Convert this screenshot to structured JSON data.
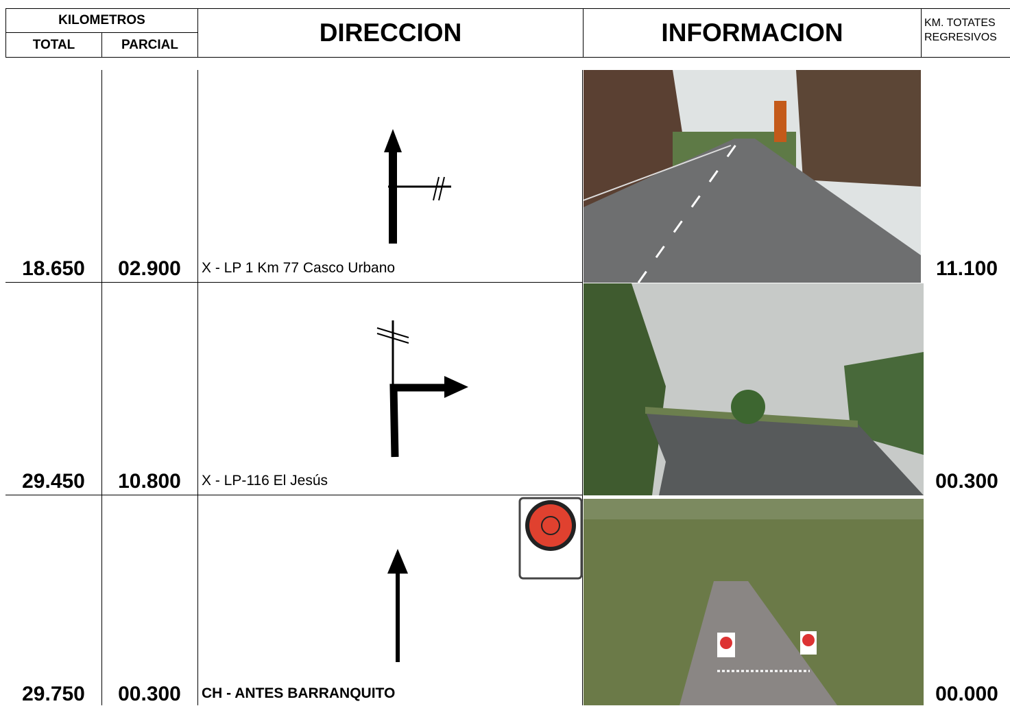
{
  "header": {
    "kilometros": "KILOMETROS",
    "total": "TOTAL",
    "parcial": "PARCIAL",
    "direccion": "DIRECCION",
    "informacion": "INFORMACION",
    "regresivos": [
      "KM. TOTATES",
      "REGRESIVOS"
    ]
  },
  "rows": [
    {
      "total": "18.650",
      "parcial": "02.900",
      "direccion": "X - LP 1 Km 77 Casco Urbano",
      "regresivo": "11.100"
    },
    {
      "total": "29.450",
      "parcial": "10.800",
      "direccion": "X - LP-116 El Jesús",
      "regresivo": "00.300"
    },
    {
      "total": "29.750",
      "parcial": "00.300",
      "direccion": "CH - ANTES BARRANQUITO",
      "regresivo": "00.000"
    }
  ]
}
